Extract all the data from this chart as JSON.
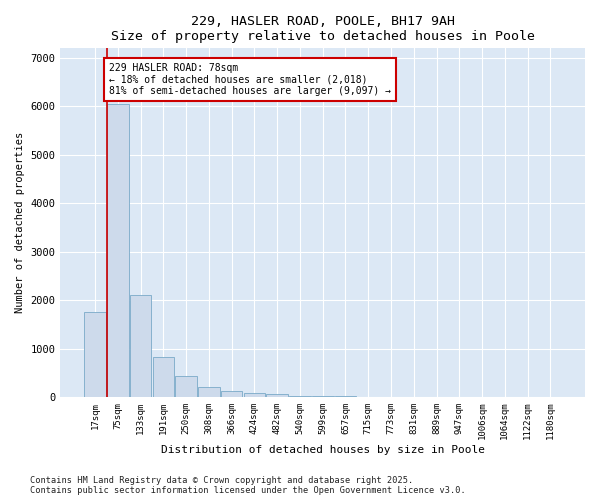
{
  "title1": "229, HASLER ROAD, POOLE, BH17 9AH",
  "title2": "Size of property relative to detached houses in Poole",
  "xlabel": "Distribution of detached houses by size in Poole",
  "ylabel": "Number of detached properties",
  "footnote1": "Contains HM Land Registry data © Crown copyright and database right 2025.",
  "footnote2": "Contains public sector information licensed under the Open Government Licence v3.0.",
  "bar_color": "#cddaeb",
  "bar_edge_color": "#7aaac8",
  "property_line_color": "#cc0000",
  "annotation_box_color": "#cc0000",
  "fig_bg_color": "#ffffff",
  "plot_bg_color": "#dce8f5",
  "grid_color": "#ffffff",
  "categories": [
    "17sqm",
    "75sqm",
    "133sqm",
    "191sqm",
    "250sqm",
    "308sqm",
    "366sqm",
    "424sqm",
    "482sqm",
    "540sqm",
    "599sqm",
    "657sqm",
    "715sqm",
    "773sqm",
    "831sqm",
    "889sqm",
    "947sqm",
    "1006sqm",
    "1064sqm",
    "1122sqm",
    "1180sqm"
  ],
  "values": [
    1750,
    6050,
    2100,
    820,
    430,
    200,
    120,
    80,
    55,
    30,
    18,
    10,
    5,
    2,
    1,
    1,
    0,
    0,
    0,
    0,
    0
  ],
  "property_bar_index": 1,
  "annotation_title": "229 HASLER ROAD: 78sqm",
  "annotation_line1": "← 18% of detached houses are smaller (2,018)",
  "annotation_line2": "81% of semi-detached houses are larger (9,097) →",
  "ylim": [
    0,
    7000
  ],
  "yticks": [
    0,
    1000,
    2000,
    3000,
    4000,
    5000,
    6000,
    7000
  ]
}
